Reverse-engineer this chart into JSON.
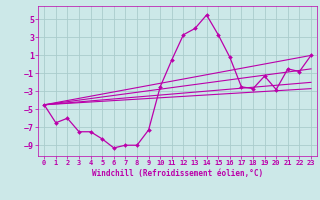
{
  "x": [
    0,
    1,
    2,
    3,
    4,
    5,
    6,
    7,
    8,
    9,
    10,
    11,
    12,
    13,
    14,
    15,
    16,
    17,
    18,
    19,
    20,
    21,
    22,
    23
  ],
  "main_line": [
    -4.5,
    -6.5,
    -6.0,
    -7.5,
    -7.5,
    -8.3,
    -9.3,
    -9.0,
    -9.0,
    -7.3,
    -2.5,
    0.5,
    3.3,
    4.0,
    5.5,
    3.3,
    0.8,
    -2.5,
    -2.7,
    -1.3,
    -2.8,
    -0.5,
    -0.8,
    1.0
  ],
  "reg_lines": [
    {
      "x": [
        0,
        23
      ],
      "y": [
        -4.5,
        1.0
      ]
    },
    {
      "x": [
        0,
        23
      ],
      "y": [
        -4.5,
        -0.5
      ]
    },
    {
      "x": [
        0,
        23
      ],
      "y": [
        -4.5,
        -2.0
      ]
    },
    {
      "x": [
        0,
        23
      ],
      "y": [
        -4.5,
        -2.7
      ]
    }
  ],
  "color": "#bb00aa",
  "bg_color": "#cce8e8",
  "grid_color": "#aacccc",
  "xlabel": "Windchill (Refroidissement éolien,°C)",
  "yticks": [
    -9,
    -7,
    -5,
    -3,
    -1,
    1,
    3,
    5
  ],
  "xticks": [
    0,
    1,
    2,
    3,
    4,
    5,
    6,
    7,
    8,
    9,
    10,
    11,
    12,
    13,
    14,
    15,
    16,
    17,
    18,
    19,
    20,
    21,
    22,
    23
  ],
  "xlim": [
    -0.5,
    23.5
  ],
  "ylim": [
    -10.2,
    6.5
  ]
}
